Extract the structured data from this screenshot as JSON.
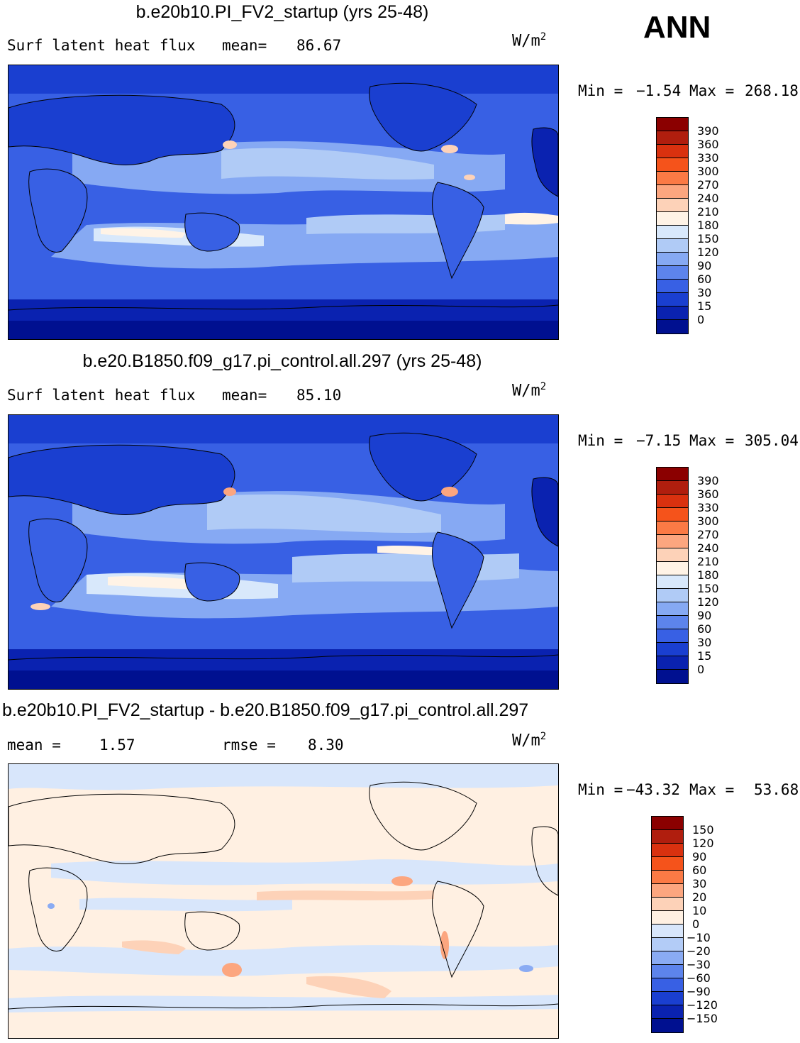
{
  "season": "ANN",
  "units_base": "W/m",
  "units_exp": "2",
  "panels": [
    {
      "title": "b.e20b10.PI_FV2_startup (yrs 25-48)",
      "left_label": "Surf latent heat flux",
      "mid_label": "mean=",
      "mid_value": "86.67",
      "min_label": "Min =",
      "min_value": "−1.54",
      "max_label": "Max =",
      "max_value": "268.18",
      "colorbar": {
        "labels": [
          "390",
          "360",
          "330",
          "300",
          "270",
          "240",
          "210",
          "180",
          "150",
          "120",
          "90",
          "60",
          "30",
          "15",
          "0"
        ],
        "colors": [
          "#8b0000",
          "#b01e0e",
          "#d9310f",
          "#f5531b",
          "#fb7a45",
          "#fca67f",
          "#fdd2b8",
          "#fff3e6",
          "#d8e8fb",
          "#b0cbf6",
          "#86a9f3",
          "#5d84ec",
          "#3860e4",
          "#1a3fd0",
          "#0a22b0",
          "#001090"
        ]
      }
    },
    {
      "title": "b.e20.B1850.f09_g17.pi_control.all.297 (yrs 25-48)",
      "left_label": "Surf latent heat flux",
      "mid_label": "mean=",
      "mid_value": "85.10",
      "min_label": "Min =",
      "min_value": "−7.15",
      "max_label": "Max =",
      "max_value": "305.04",
      "colorbar": {
        "labels": [
          "390",
          "360",
          "330",
          "300",
          "270",
          "240",
          "210",
          "180",
          "150",
          "120",
          "90",
          "60",
          "30",
          "15",
          "0"
        ],
        "colors": [
          "#8b0000",
          "#b01e0e",
          "#d9310f",
          "#f5531b",
          "#fb7a45",
          "#fca67f",
          "#fdd2b8",
          "#fff3e6",
          "#d8e8fb",
          "#b0cbf6",
          "#86a9f3",
          "#5d84ec",
          "#3860e4",
          "#1a3fd0",
          "#0a22b0",
          "#001090"
        ]
      }
    },
    {
      "title": "b.e20b10.PI_FV2_startup - b.e20.B1850.f09_g17.pi_control.all.297",
      "left_label": "mean =",
      "left_value": "1.57",
      "mid_label": "rmse =",
      "mid_value": "8.30",
      "min_label": "Min =",
      "min_value": "−43.32",
      "max_label": "Max =",
      "max_value": "53.68",
      "colorbar": {
        "labels": [
          "150",
          "120",
          "90",
          "60",
          "30",
          "20",
          "10",
          "0",
          "−10",
          "−20",
          "−30",
          "−60",
          "−90",
          "−120",
          "−150"
        ],
        "colors": [
          "#8b0000",
          "#b01e0e",
          "#d9310f",
          "#f5531b",
          "#fb7a45",
          "#fca67f",
          "#fdd2b8",
          "#fff0e2",
          "#d8e6fb",
          "#b3ccf7",
          "#8aabf3",
          "#5d84ec",
          "#3860e4",
          "#1a3fd0",
          "#0a22b0",
          "#001090"
        ]
      }
    }
  ]
}
